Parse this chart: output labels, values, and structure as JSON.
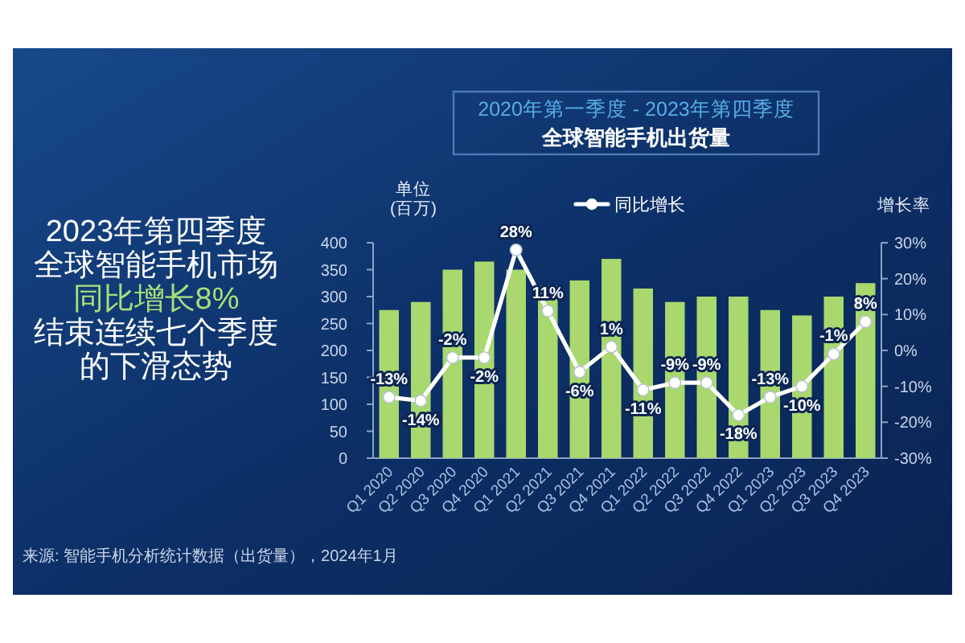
{
  "chart_data": {
    "type": "bar",
    "title": "2020年第一季度 - 2023年第四季度",
    "subtitle": "全球智能手机出货量",
    "ylabel": "单位\n(百万)",
    "y2label": "增长率",
    "categories": [
      "Q1 2020",
      "Q2 2020",
      "Q3 2020",
      "Q4 2020",
      "Q1 2021",
      "Q2 2021",
      "Q3 2021",
      "Q4 2021",
      "Q1 2022",
      "Q2 2022",
      "Q3 2022",
      "Q4 2022",
      "Q1 2023",
      "Q2 2023",
      "Q3 2023",
      "Q4 2023"
    ],
    "series": [
      {
        "color": "#a8d86e",
        "values": [
          275,
          290,
          350,
          365,
          350,
          320,
          330,
          370,
          315,
          290,
          300,
          300,
          275,
          265,
          300,
          325
        ]
      },
      {
        "type": "line",
        "name": "同比增长",
        "color": "#ffffff",
        "axis": "y2",
        "values": [
          -13,
          -14,
          -2,
          -2,
          28,
          11,
          -6,
          1,
          -11,
          -9,
          -9,
          -18,
          -13,
          -10,
          -1,
          8
        ],
        "value_labels": [
          "-13%",
          "-14%",
          "-2%",
          "-2%",
          "28%",
          "11%",
          "-6%",
          "1%",
          "-11%",
          "-9%",
          "-9%",
          "-18%",
          "-13%",
          "-10%",
          "-1%",
          "8%"
        ]
      }
    ],
    "ylim": [
      0,
      400
    ],
    "yticks": [
      0,
      50,
      100,
      150,
      200,
      250,
      300,
      350,
      400
    ],
    "y2lim": [
      -30,
      30
    ],
    "y2ticks": [
      {
        "value": -30,
        "label": "-30%"
      },
      {
        "value": -20,
        "label": "-20%"
      },
      {
        "value": -10,
        "label": "-10%"
      },
      {
        "value": 0,
        "label": "0%"
      },
      {
        "value": 10,
        "label": "10%"
      },
      {
        "value": 20,
        "label": "20%"
      },
      {
        "value": 30,
        "label": "30%"
      }
    ],
    "legend": "top",
    "marker": "circle",
    "annotations": [
      "2023年第四季度",
      "全球智能手机市场",
      "同比增长8%",
      "结束连续七个季度",
      "的下滑态势",
      "来源: 智能手机分析统计数据（出货量），2024年1月"
    ]
  }
}
